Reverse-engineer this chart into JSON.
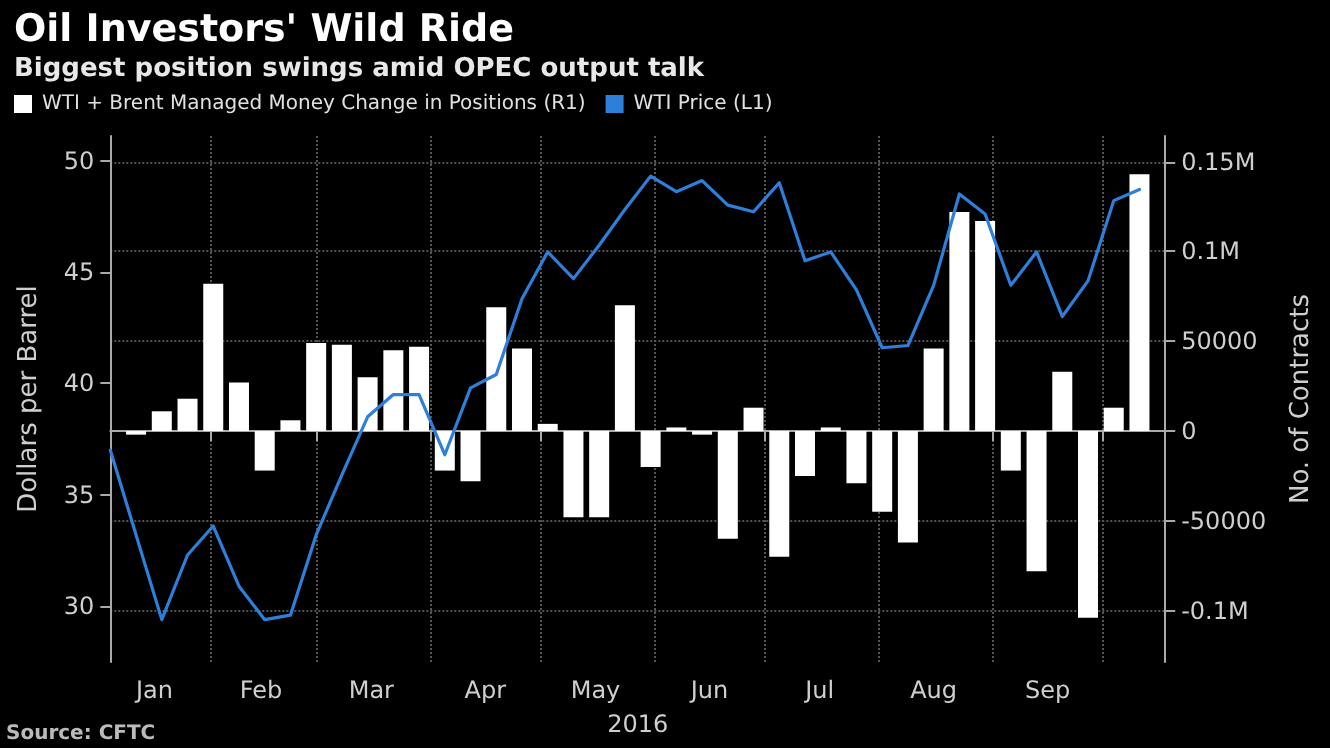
{
  "chart_data": {
    "type": "bar",
    "title": "Oil Investors' Wild Ride",
    "subtitle": "Biggest position swings amid OPEC output talk",
    "xlabel": "2016",
    "ylabel": "Dollars per Barrel",
    "y2label": "No. of Contracts",
    "annotations": [
      "Source: CFTC"
    ],
    "x": [
      "2016-01-05",
      "2016-01-12",
      "2016-01-19",
      "2016-01-26",
      "2016-02-02",
      "2016-02-09",
      "2016-02-16",
      "2016-02-23",
      "2016-03-01",
      "2016-03-08",
      "2016-03-15",
      "2016-03-22",
      "2016-03-29",
      "2016-04-05",
      "2016-04-12",
      "2016-04-19",
      "2016-04-26",
      "2016-05-03",
      "2016-05-10",
      "2016-05-17",
      "2016-05-24",
      "2016-05-31",
      "2016-06-07",
      "2016-06-14",
      "2016-06-21",
      "2016-06-28",
      "2016-07-05",
      "2016-07-12",
      "2016-07-19",
      "2016-07-26",
      "2016-08-02",
      "2016-08-09",
      "2016-08-16",
      "2016-08-23",
      "2016-08-30",
      "2016-09-06",
      "2016-09-13",
      "2016-09-20",
      "2016-09-27",
      "2016-10-04",
      "2016-10-11"
    ],
    "series": [
      {
        "name": "WTI + Brent Managed Money Change in Positions (R1)",
        "type": "bar",
        "axis": "y2",
        "color": "#ffffff",
        "values": [
          null,
          -2000,
          11000,
          18000,
          82000,
          27000,
          -22000,
          6000,
          49000,
          48000,
          30000,
          45000,
          47000,
          -22000,
          -28000,
          69000,
          46000,
          4000,
          -48000,
          -48000,
          70000,
          -20000,
          2000,
          -2000,
          -60000,
          13000,
          -70000,
          -25000,
          2000,
          -29000,
          -45000,
          -62000,
          46000,
          122000,
          117000,
          -22000,
          -78000,
          33000,
          -104000,
          13000,
          143000
        ]
      },
      {
        "name": "WTI Price (L1)",
        "type": "line",
        "color": "#2d7fd9",
        "values": [
          37.0,
          33.2,
          29.4,
          32.3,
          33.6,
          30.9,
          29.4,
          29.6,
          33.2,
          35.9,
          38.5,
          39.5,
          39.5,
          36.8,
          39.8,
          40.4,
          43.8,
          45.9,
          44.7,
          46.2,
          47.8,
          49.3,
          48.6,
          49.1,
          48.0,
          47.7,
          49.0,
          45.5,
          45.9,
          44.2,
          41.6,
          41.7,
          44.4,
          48.5,
          47.6,
          44.4,
          45.9,
          43.0,
          44.6,
          48.2,
          48.7
        ]
      }
    ],
    "xlim": [
      "2016-01-05",
      "2016-10-18"
    ],
    "xticks": [
      {
        "value": "2016-01-17",
        "label": "Jan"
      },
      {
        "value": "2016-02-01",
        "label": null
      },
      {
        "value": "2016-02-15",
        "label": "Feb"
      },
      {
        "value": "2016-03-01",
        "label": null
      },
      {
        "value": "2016-03-16",
        "label": "Mar"
      },
      {
        "value": "2016-04-01",
        "label": null
      },
      {
        "value": "2016-04-16",
        "label": "Apr"
      },
      {
        "value": "2016-05-01",
        "label": null
      },
      {
        "value": "2016-05-16",
        "label": "May"
      },
      {
        "value": "2016-06-01",
        "label": null
      },
      {
        "value": "2016-06-16",
        "label": "Jun"
      },
      {
        "value": "2016-07-01",
        "label": null
      },
      {
        "value": "2016-07-16",
        "label": "Jul"
      },
      {
        "value": "2016-08-01",
        "label": null
      },
      {
        "value": "2016-08-16",
        "label": "Aug"
      },
      {
        "value": "2016-09-01",
        "label": null
      },
      {
        "value": "2016-09-16",
        "label": "Sep"
      },
      {
        "value": "2016-10-01",
        "label": null
      }
    ],
    "ylim": [
      27.5,
      51.1
    ],
    "yticks": [
      30,
      35,
      40,
      45,
      50
    ],
    "y2lim": [
      -128600,
      164300
    ],
    "y2ticks": [
      {
        "value": -100000,
        "label": "-0.1M"
      },
      {
        "value": -50000,
        "label": "-50000"
      },
      0,
      50000,
      {
        "value": 100000,
        "label": "0.1M"
      },
      {
        "value": 150000,
        "label": "0.15M"
      }
    ],
    "grid": true,
    "legend": "top left",
    "marker": "none"
  }
}
